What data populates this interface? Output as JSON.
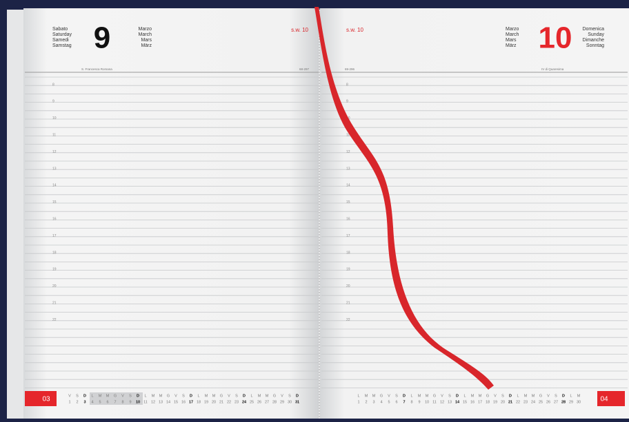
{
  "left_page": {
    "days": [
      "Sabato",
      "Saturday",
      "Samedi",
      "Samstag"
    ],
    "day_number": "9",
    "months": [
      "Marzo",
      "March",
      "Mars",
      "März"
    ],
    "week": "s.w. 10",
    "saint": "S. Francesca Romana",
    "day_count": "68-297",
    "hours": [
      8,
      9,
      10,
      11,
      12,
      13,
      14,
      15,
      16,
      17,
      18,
      19,
      20,
      21,
      22
    ],
    "month_tab": "03",
    "calendar_letters": [
      "V",
      "S",
      "D",
      "L",
      "M",
      "M",
      "G",
      "V",
      "S",
      "D",
      "L",
      "M",
      "M",
      "G",
      "V",
      "S",
      "D",
      "L",
      "M",
      "M",
      "G",
      "V",
      "S",
      "D",
      "L",
      "M",
      "M",
      "G",
      "V",
      "S",
      "D"
    ],
    "calendar_days": [
      1,
      2,
      3,
      4,
      5,
      6,
      7,
      8,
      9,
      10,
      11,
      12,
      13,
      14,
      15,
      16,
      17,
      18,
      19,
      20,
      21,
      22,
      23,
      24,
      25,
      26,
      27,
      28,
      29,
      30,
      31
    ]
  },
  "right_page": {
    "week": "s.w. 10",
    "day_count": "69-296",
    "months": [
      "Marzo",
      "March",
      "Mars",
      "März"
    ],
    "day_number": "10",
    "days": [
      "Domenica",
      "Sunday",
      "Dimanche",
      "Sonntag"
    ],
    "note": "IV di Quaresima",
    "hours": [
      8,
      9,
      10,
      11,
      12,
      13,
      14,
      15,
      16,
      17,
      18,
      19,
      20,
      21,
      22
    ],
    "month_tab": "04",
    "calendar_letters": [
      "L",
      "M",
      "M",
      "G",
      "V",
      "S",
      "D",
      "L",
      "M",
      "M",
      "G",
      "V",
      "S",
      "D",
      "L",
      "M",
      "M",
      "G",
      "V",
      "S",
      "D",
      "L",
      "M",
      "M",
      "G",
      "V",
      "S",
      "D",
      "L",
      "M"
    ],
    "calendar_days": [
      1,
      2,
      3,
      4,
      5,
      6,
      7,
      8,
      9,
      10,
      11,
      12,
      13,
      14,
      15,
      16,
      17,
      18,
      19,
      20,
      21,
      22,
      23,
      24,
      25,
      26,
      27,
      28,
      29,
      30
    ]
  }
}
